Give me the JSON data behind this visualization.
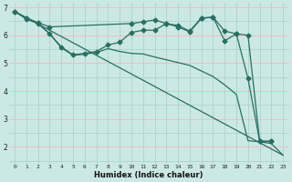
{
  "xlabel": "Humidex (Indice chaleur)",
  "bg_color": "#cce8e4",
  "grid_major_color": "#aad4ce",
  "grid_minor_color": "#f5b8b8",
  "line_color": "#2a6e62",
  "marker": "D",
  "markersize": 2.5,
  "linewidth": 0.9,
  "xlim": [
    -0.5,
    23.5
  ],
  "ylim": [
    1.4,
    7.15
  ],
  "xticks": [
    0,
    1,
    2,
    3,
    4,
    5,
    6,
    7,
    8,
    9,
    10,
    11,
    12,
    13,
    14,
    15,
    16,
    17,
    18,
    19,
    20,
    21,
    22,
    23
  ],
  "yticks": [
    2,
    3,
    4,
    5,
    6,
    7
  ],
  "series": [
    {
      "x": [
        0,
        23
      ],
      "y": [
        6.85,
        1.7
      ],
      "has_marker": false
    },
    {
      "x": [
        0,
        1,
        2,
        3,
        10,
        11,
        12,
        13,
        14,
        15,
        16,
        17,
        18,
        19,
        20,
        21,
        22
      ],
      "y": [
        6.85,
        6.62,
        6.45,
        6.3,
        6.42,
        6.48,
        6.55,
        6.42,
        6.35,
        6.15,
        6.62,
        6.65,
        6.15,
        6.05,
        6.0,
        2.2,
        2.2
      ],
      "has_marker": true
    },
    {
      "x": [
        0,
        1,
        2,
        3,
        4,
        5,
        6,
        7,
        8,
        9,
        10,
        11,
        12,
        13,
        14,
        15,
        16,
        17,
        18,
        19,
        20,
        21,
        22
      ],
      "y": [
        6.85,
        6.58,
        6.42,
        6.05,
        5.58,
        5.3,
        5.35,
        5.42,
        5.65,
        5.75,
        6.1,
        6.18,
        6.18,
        6.42,
        6.3,
        6.12,
        6.6,
        6.65,
        5.8,
        6.05,
        4.45,
        2.2,
        2.2
      ],
      "has_marker": true
    },
    {
      "x": [
        0,
        1,
        2,
        3,
        4,
        5,
        6,
        7,
        8,
        9,
        10,
        11,
        12,
        13,
        14,
        15,
        16,
        17,
        18,
        19,
        20,
        21,
        22,
        23
      ],
      "y": [
        6.85,
        6.62,
        6.42,
        6.05,
        5.55,
        5.28,
        5.32,
        5.38,
        5.52,
        5.42,
        5.35,
        5.33,
        5.22,
        5.12,
        5.02,
        4.92,
        4.72,
        4.52,
        4.22,
        3.88,
        2.22,
        2.18,
        2.12,
        1.7
      ],
      "has_marker": false
    }
  ]
}
